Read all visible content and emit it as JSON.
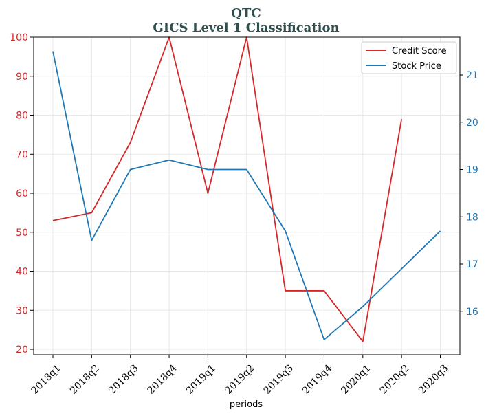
{
  "chart_data": {
    "type": "line",
    "title": "QTC",
    "subtitle": "GICS Level 1 Classification",
    "xlabel": "periods",
    "categories": [
      "2018q1",
      "2018q2",
      "2018q3",
      "2018q4",
      "2019q1",
      "2019q2",
      "2019q3",
      "2019q4",
      "2020q1",
      "2020q2",
      "2020q3"
    ],
    "series": [
      {
        "name": "Credit Score",
        "axis": "left",
        "color": "#d62728",
        "values": [
          53,
          55,
          73,
          100,
          60,
          100,
          35,
          35,
          22,
          79,
          null
        ]
      },
      {
        "name": "Stock Price",
        "axis": "right",
        "color": "#1f77b4",
        "values": [
          21.5,
          17.5,
          19.0,
          19.2,
          19.0,
          19.0,
          17.7,
          15.4,
          16.1,
          16.9,
          17.7
        ]
      }
    ],
    "y_left": {
      "ylim": [
        18.6,
        100
      ],
      "ticks": [
        "20",
        "30",
        "40",
        "50",
        "60",
        "70",
        "80",
        "90",
        "100"
      ],
      "color": "#d62728"
    },
    "y_right": {
      "ylim": [
        15.08,
        21.8
      ],
      "ticks": [
        "16",
        "17",
        "18",
        "19",
        "20",
        "21"
      ],
      "color": "#1f77b4"
    },
    "grid": true,
    "legend_position": "top-right"
  }
}
